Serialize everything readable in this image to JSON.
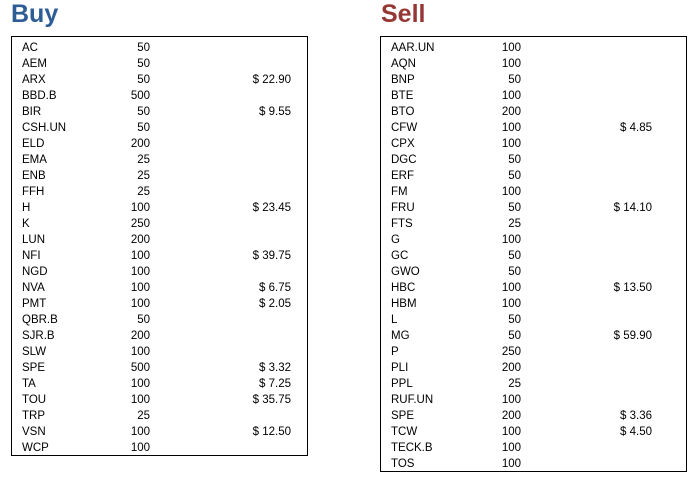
{
  "buy": {
    "title": "Buy",
    "rows": [
      {
        "symbol": "AC",
        "qty": "50",
        "price": ""
      },
      {
        "symbol": "AEM",
        "qty": "50",
        "price": ""
      },
      {
        "symbol": "ARX",
        "qty": "50",
        "price": "$ 22.90"
      },
      {
        "symbol": "BBD.B",
        "qty": "500",
        "price": ""
      },
      {
        "symbol": "BIR",
        "qty": "50",
        "price": "$ 9.55"
      },
      {
        "symbol": "CSH.UN",
        "qty": "50",
        "price": ""
      },
      {
        "symbol": "ELD",
        "qty": "200",
        "price": ""
      },
      {
        "symbol": "EMA",
        "qty": "25",
        "price": ""
      },
      {
        "symbol": "ENB",
        "qty": "25",
        "price": ""
      },
      {
        "symbol": "FFH",
        "qty": "25",
        "price": ""
      },
      {
        "symbol": "H",
        "qty": "100",
        "price": "$ 23.45"
      },
      {
        "symbol": "K",
        "qty": "250",
        "price": ""
      },
      {
        "symbol": "LUN",
        "qty": "200",
        "price": ""
      },
      {
        "symbol": "NFI",
        "qty": "100",
        "price": "$ 39.75"
      },
      {
        "symbol": "NGD",
        "qty": "100",
        "price": ""
      },
      {
        "symbol": "NVA",
        "qty": "100",
        "price": "$ 6.75"
      },
      {
        "symbol": "PMT",
        "qty": "100",
        "price": "$ 2.05"
      },
      {
        "symbol": "QBR.B",
        "qty": "50",
        "price": ""
      },
      {
        "symbol": "SJR.B",
        "qty": "200",
        "price": ""
      },
      {
        "symbol": "SLW",
        "qty": "100",
        "price": ""
      },
      {
        "symbol": "SPE",
        "qty": "500",
        "price": "$ 3.32"
      },
      {
        "symbol": "TA",
        "qty": "100",
        "price": "$ 7.25"
      },
      {
        "symbol": "TOU",
        "qty": "100",
        "price": "$ 35.75"
      },
      {
        "symbol": "TRP",
        "qty": "25",
        "price": ""
      },
      {
        "symbol": "VSN",
        "qty": "100",
        "price": "$ 12.50"
      },
      {
        "symbol": "WCP",
        "qty": "100",
        "price": ""
      }
    ]
  },
  "sell": {
    "title": "Sell",
    "rows": [
      {
        "symbol": "AAR.UN",
        "qty": "100",
        "price": ""
      },
      {
        "symbol": "AQN",
        "qty": "100",
        "price": ""
      },
      {
        "symbol": "BNP",
        "qty": "50",
        "price": ""
      },
      {
        "symbol": "BTE",
        "qty": "100",
        "price": ""
      },
      {
        "symbol": "BTO",
        "qty": "200",
        "price": ""
      },
      {
        "symbol": "CFW",
        "qty": "100",
        "price": "$ 4.85"
      },
      {
        "symbol": "CPX",
        "qty": "100",
        "price": ""
      },
      {
        "symbol": "DGC",
        "qty": "50",
        "price": ""
      },
      {
        "symbol": "ERF",
        "qty": "50",
        "price": ""
      },
      {
        "symbol": "FM",
        "qty": "100",
        "price": ""
      },
      {
        "symbol": "FRU",
        "qty": "50",
        "price": "$ 14.10"
      },
      {
        "symbol": "FTS",
        "qty": "25",
        "price": ""
      },
      {
        "symbol": "G",
        "qty": "100",
        "price": ""
      },
      {
        "symbol": "GC",
        "qty": "50",
        "price": ""
      },
      {
        "symbol": "GWO",
        "qty": "50",
        "price": ""
      },
      {
        "symbol": "HBC",
        "qty": "100",
        "price": "$ 13.50"
      },
      {
        "symbol": "HBM",
        "qty": "100",
        "price": ""
      },
      {
        "symbol": "L",
        "qty": "50",
        "price": ""
      },
      {
        "symbol": "MG",
        "qty": "50",
        "price": "$ 59.90"
      },
      {
        "symbol": "P",
        "qty": "250",
        "price": ""
      },
      {
        "symbol": "PLI",
        "qty": "200",
        "price": ""
      },
      {
        "symbol": "PPL",
        "qty": "25",
        "price": ""
      },
      {
        "symbol": "RUF.UN",
        "qty": "100",
        "price": ""
      },
      {
        "symbol": "SPE",
        "qty": "200",
        "price": "$ 3.36"
      },
      {
        "symbol": "TCW",
        "qty": "100",
        "price": "$ 4.50"
      },
      {
        "symbol": "TECK.B",
        "qty": "100",
        "price": ""
      },
      {
        "symbol": "TOS",
        "qty": "100",
        "price": ""
      }
    ]
  },
  "colors": {
    "buy_title": "#2e5d96",
    "sell_title": "#953734"
  }
}
